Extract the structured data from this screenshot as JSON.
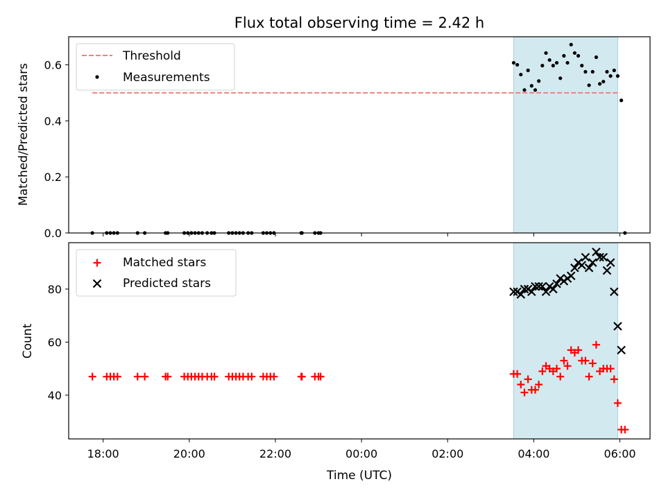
{
  "chart_data": [
    {
      "type": "scatter",
      "title": "Flux total observing time = 2.42 h",
      "xlabel": "",
      "ylabel": "Matched/Predicted stars",
      "xlim": [
        "17:12",
        "30:42"
      ],
      "ylim": [
        0,
        0.7
      ],
      "yticks": [
        "0.0",
        "0.2",
        "0.4",
        "0.6"
      ],
      "xticks": [
        "18:00",
        "20:00",
        "22:00",
        "00:00",
        "02:00",
        "04:00",
        "06:00"
      ],
      "shaded_region": {
        "x": [
          "03:32",
          "05:57"
        ],
        "color": "#d3e9f0"
      },
      "legend": {
        "placement": "upper left",
        "entries": [
          "Threshold",
          "Measurements"
        ]
      },
      "threshold": {
        "name": "Threshold",
        "value": 0.5,
        "x": [
          "17:45",
          "30:00"
        ],
        "color": "#f08080",
        "style": "dashed"
      },
      "series": [
        {
          "name": "Measurements",
          "color": "#000000",
          "points": [
            [
              "17:45",
              0.0
            ],
            [
              "18:05",
              0.0
            ],
            [
              "18:10",
              0.0
            ],
            [
              "18:15",
              0.0
            ],
            [
              "18:20",
              0.0
            ],
            [
              "18:48",
              0.0
            ],
            [
              "18:58",
              0.0
            ],
            [
              "19:27",
              0.0
            ],
            [
              "19:30",
              0.0
            ],
            [
              "19:53",
              0.0
            ],
            [
              "19:58",
              0.0
            ],
            [
              "20:03",
              0.0
            ],
            [
              "20:08",
              0.0
            ],
            [
              "20:13",
              0.0
            ],
            [
              "20:18",
              0.0
            ],
            [
              "20:25",
              0.0
            ],
            [
              "20:31",
              0.0
            ],
            [
              "20:35",
              0.0
            ],
            [
              "20:55",
              0.0
            ],
            [
              "21:00",
              0.0
            ],
            [
              "21:05",
              0.0
            ],
            [
              "21:10",
              0.0
            ],
            [
              "21:15",
              0.0
            ],
            [
              "21:22",
              0.0
            ],
            [
              "21:27",
              0.0
            ],
            [
              "21:43",
              0.0
            ],
            [
              "21:48",
              0.0
            ],
            [
              "21:53",
              0.0
            ],
            [
              "21:58",
              0.0
            ],
            [
              "22:36",
              0.0
            ],
            [
              "22:37",
              0.0
            ],
            [
              "22:55",
              0.0
            ],
            [
              "23:00",
              0.0
            ],
            [
              "23:03",
              0.0
            ],
            [
              "03:32",
              0.607
            ],
            [
              "03:37",
              0.6
            ],
            [
              "03:42",
              0.565
            ],
            [
              "03:47",
              0.51
            ],
            [
              "03:52",
              0.58
            ],
            [
              "03:57",
              0.525
            ],
            [
              "04:02",
              0.51
            ],
            [
              "04:07",
              0.542
            ],
            [
              "04:12",
              0.597
            ],
            [
              "04:17",
              0.642
            ],
            [
              "04:22",
              0.617
            ],
            [
              "04:27",
              0.597
            ],
            [
              "04:32",
              0.607
            ],
            [
              "04:37",
              0.552
            ],
            [
              "04:42",
              0.632
            ],
            [
              "04:47",
              0.607
            ],
            [
              "04:52",
              0.672
            ],
            [
              "04:57",
              0.642
            ],
            [
              "05:02",
              0.632
            ],
            [
              "05:07",
              0.597
            ],
            [
              "05:12",
              0.575
            ],
            [
              "05:17",
              0.527
            ],
            [
              "05:22",
              0.575
            ],
            [
              "05:27",
              0.627
            ],
            [
              "05:32",
              0.532
            ],
            [
              "05:37",
              0.54
            ],
            [
              "05:42",
              0.575
            ],
            [
              "05:47",
              0.56
            ],
            [
              "05:52",
              0.58
            ],
            [
              "05:57",
              0.56
            ],
            [
              "06:02",
              0.473
            ],
            [
              "06:07",
              0.0
            ]
          ]
        }
      ]
    },
    {
      "type": "scatter",
      "title": "",
      "xlabel": "Time (UTC)",
      "ylabel": "Count",
      "xlim": [
        "17:12",
        "30:42"
      ],
      "ylim": [
        23.5,
        97.5
      ],
      "yticks": [
        "40",
        "60",
        "80"
      ],
      "xticks": [
        "18:00",
        "20:00",
        "22:00",
        "00:00",
        "02:00",
        "04:00",
        "06:00"
      ],
      "shaded_region": {
        "x": [
          "03:32",
          "05:57"
        ],
        "color": "#d3e9f0"
      },
      "legend": {
        "placement": "upper left",
        "entries": [
          "Matched stars",
          "Predicted stars"
        ]
      },
      "series": [
        {
          "name": "Matched stars",
          "color": "#ff0000",
          "marker": "plus",
          "points": [
            [
              "17:45",
              47
            ],
            [
              "18:05",
              47
            ],
            [
              "18:10",
              47
            ],
            [
              "18:15",
              47
            ],
            [
              "18:20",
              47
            ],
            [
              "18:48",
              47
            ],
            [
              "18:58",
              47
            ],
            [
              "19:27",
              47
            ],
            [
              "19:30",
              47
            ],
            [
              "19:53",
              47
            ],
            [
              "19:58",
              47
            ],
            [
              "20:03",
              47
            ],
            [
              "20:08",
              47
            ],
            [
              "20:13",
              47
            ],
            [
              "20:18",
              47
            ],
            [
              "20:25",
              47
            ],
            [
              "20:31",
              47
            ],
            [
              "20:35",
              47
            ],
            [
              "20:55",
              47
            ],
            [
              "21:00",
              47
            ],
            [
              "21:05",
              47
            ],
            [
              "21:10",
              47
            ],
            [
              "21:15",
              47
            ],
            [
              "21:22",
              47
            ],
            [
              "21:27",
              47
            ],
            [
              "21:43",
              47
            ],
            [
              "21:48",
              47
            ],
            [
              "21:53",
              47
            ],
            [
              "21:58",
              47
            ],
            [
              "22:36",
              47
            ],
            [
              "22:37",
              47
            ],
            [
              "22:55",
              47
            ],
            [
              "23:00",
              47
            ],
            [
              "23:03",
              47
            ],
            [
              "03:32",
              48
            ],
            [
              "03:37",
              48
            ],
            [
              "03:42",
              44
            ],
            [
              "03:47",
              41
            ],
            [
              "03:52",
              46
            ],
            [
              "03:57",
              42
            ],
            [
              "04:02",
              42
            ],
            [
              "04:07",
              44
            ],
            [
              "04:12",
              49
            ],
            [
              "04:17",
              51
            ],
            [
              "04:22",
              50
            ],
            [
              "04:27",
              49
            ],
            [
              "04:32",
              50
            ],
            [
              "04:37",
              47
            ],
            [
              "04:42",
              53
            ],
            [
              "04:47",
              51
            ],
            [
              "04:52",
              57
            ],
            [
              "04:57",
              56
            ],
            [
              "05:02",
              57
            ],
            [
              "05:07",
              53
            ],
            [
              "05:12",
              53
            ],
            [
              "05:17",
              47
            ],
            [
              "05:22",
              52
            ],
            [
              "05:27",
              59
            ],
            [
              "05:32",
              49
            ],
            [
              "05:37",
              50
            ],
            [
              "05:42",
              50
            ],
            [
              "05:47",
              50
            ],
            [
              "05:52",
              46
            ],
            [
              "05:57",
              37
            ],
            [
              "06:02",
              27
            ],
            [
              "06:07",
              27
            ]
          ]
        },
        {
          "name": "Predicted stars",
          "color": "#000000",
          "marker": "x",
          "points": [
            [
              "03:32",
              79
            ],
            [
              "03:37",
              79
            ],
            [
              "03:42",
              78
            ],
            [
              "03:47",
              80
            ],
            [
              "03:52",
              80
            ],
            [
              "03:57",
              79
            ],
            [
              "04:02",
              81
            ],
            [
              "04:07",
              81
            ],
            [
              "04:12",
              81
            ],
            [
              "04:17",
              79
            ],
            [
              "04:22",
              81
            ],
            [
              "04:27",
              80
            ],
            [
              "04:32",
              82
            ],
            [
              "04:37",
              84
            ],
            [
              "04:42",
              83
            ],
            [
              "04:47",
              84
            ],
            [
              "04:52",
              85
            ],
            [
              "04:57",
              88
            ],
            [
              "05:02",
              90
            ],
            [
              "05:07",
              89
            ],
            [
              "05:12",
              92
            ],
            [
              "05:17",
              88
            ],
            [
              "05:22",
              90
            ],
            [
              "05:27",
              94
            ],
            [
              "05:32",
              92
            ],
            [
              "05:37",
              92
            ],
            [
              "05:42",
              87
            ],
            [
              "05:47",
              90
            ],
            [
              "05:52",
              79
            ],
            [
              "05:57",
              66
            ],
            [
              "06:02",
              57
            ]
          ]
        }
      ]
    }
  ]
}
